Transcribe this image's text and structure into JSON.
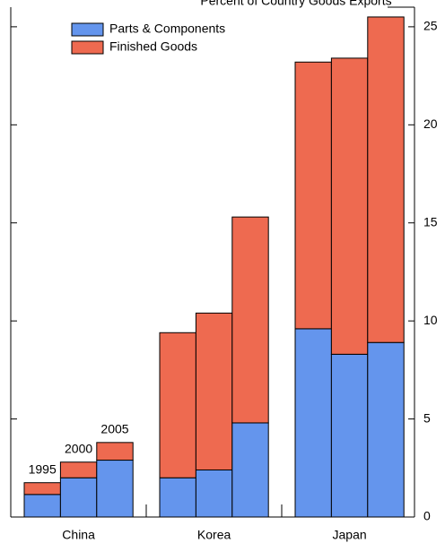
{
  "chart_data": {
    "type": "bar",
    "title": "Percent of Country Goods Exports",
    "categories": [
      "China",
      "Korea",
      "Japan"
    ],
    "bar_labels": [
      "1995",
      "2000",
      "2005"
    ],
    "series": [
      {
        "name": "Parts & Components",
        "color": "#6495ed",
        "values": [
          [
            1.15,
            2.0,
            2.9
          ],
          [
            2.0,
            2.4,
            4.8
          ],
          [
            9.6,
            8.3,
            8.9
          ]
        ]
      },
      {
        "name": "Finished Goods",
        "color": "#ee6a50",
        "values": [
          [
            0.6,
            0.8,
            0.9
          ],
          [
            7.4,
            8.0,
            10.5
          ],
          [
            13.6,
            15.1,
            16.6
          ]
        ]
      }
    ],
    "stacked": true,
    "ylim": [
      0,
      26
    ],
    "yticks": [
      0,
      5,
      10,
      15,
      20,
      25
    ]
  }
}
